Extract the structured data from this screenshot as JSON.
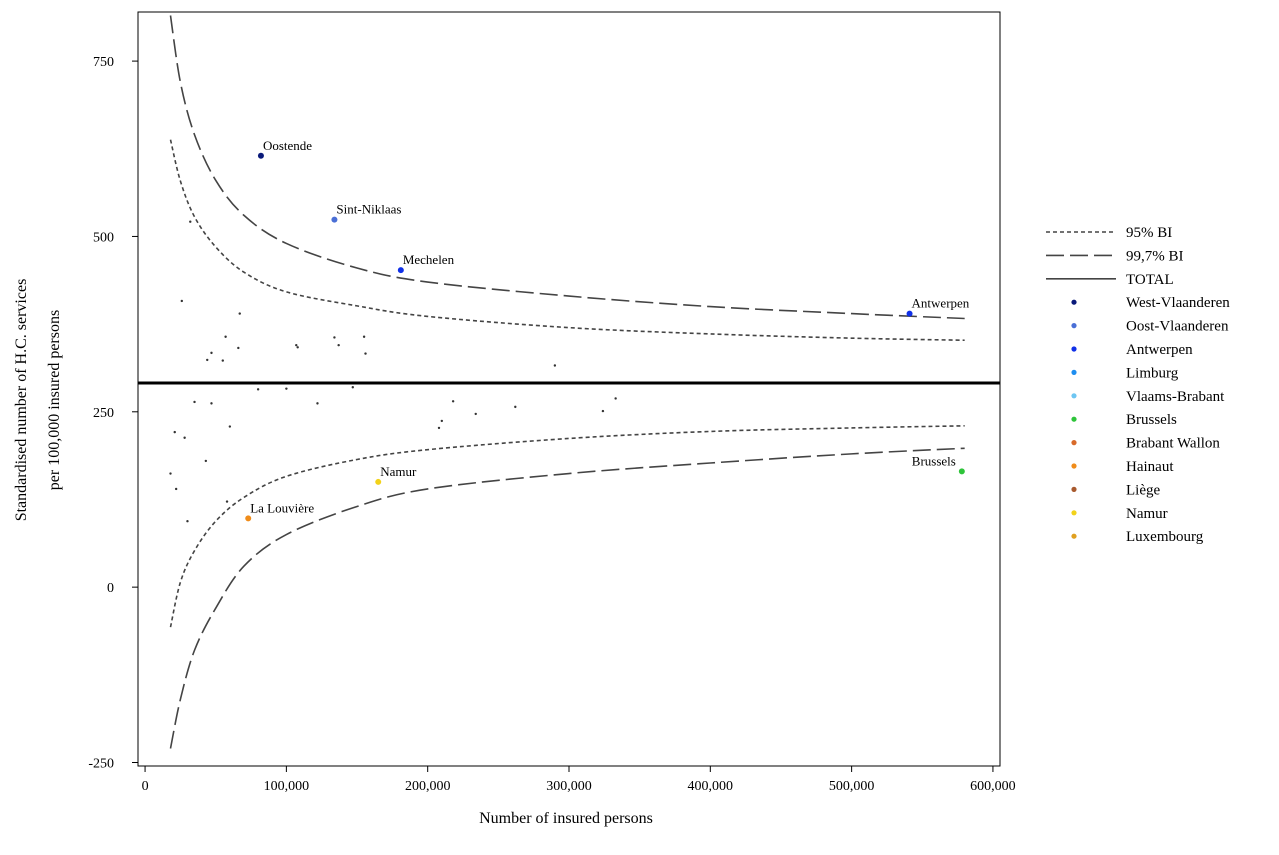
{
  "chart_data": {
    "type": "scatter",
    "title": "",
    "xlabel": "Number of insured persons",
    "ylabel": "Standardised number of H.C. services per 100,000 insured persons",
    "ylabel_lines": [
      "Standardised number of H.C. services",
      "per 100,000 insured persons"
    ],
    "xlim": [
      -5000,
      605000
    ],
    "ylim": [
      -255,
      820
    ],
    "x_ticks": [
      0,
      100000,
      200000,
      300000,
      400000,
      500000,
      600000
    ],
    "x_tick_labels": [
      "0",
      "100,000",
      "200,000",
      "300,000",
      "400,000",
      "500,000",
      "600,000"
    ],
    "y_ticks": [
      -250,
      0,
      250,
      500,
      750
    ],
    "y_tick_labels": [
      "-250",
      "0",
      "250",
      "500",
      "750"
    ],
    "grid": false,
    "legend_position": "right",
    "total": 291,
    "funnel": {
      "bi95": {
        "upper": [
          [
            18000,
            638
          ],
          [
            25000,
            579
          ],
          [
            35000,
            528
          ],
          [
            50000,
            485
          ],
          [
            70000,
            449
          ],
          [
            100000,
            421
          ],
          [
            150000,
            401
          ],
          [
            200000,
            386
          ],
          [
            300000,
            370
          ],
          [
            400000,
            361
          ],
          [
            500000,
            355
          ],
          [
            580000,
            352
          ]
        ],
        "lower": [
          [
            18000,
            -57
          ],
          [
            25000,
            7
          ],
          [
            35000,
            52
          ],
          [
            50000,
            94
          ],
          [
            70000,
            128
          ],
          [
            100000,
            158
          ],
          [
            150000,
            182
          ],
          [
            200000,
            196
          ],
          [
            300000,
            212
          ],
          [
            400000,
            222
          ],
          [
            500000,
            227
          ],
          [
            580000,
            230
          ]
        ]
      },
      "bi997": {
        "upper": [
          [
            18000,
            815
          ],
          [
            25000,
            720
          ],
          [
            35000,
            645
          ],
          [
            50000,
            580
          ],
          [
            70000,
            530
          ],
          [
            100000,
            490
          ],
          [
            150000,
            455
          ],
          [
            200000,
            435
          ],
          [
            300000,
            415
          ],
          [
            400000,
            400
          ],
          [
            500000,
            390
          ],
          [
            580000,
            383
          ]
        ],
        "lower": [
          [
            18000,
            -230
          ],
          [
            25000,
            -160
          ],
          [
            35000,
            -90
          ],
          [
            50000,
            -30
          ],
          [
            70000,
            30
          ],
          [
            100000,
            75
          ],
          [
            150000,
            115
          ],
          [
            200000,
            140
          ],
          [
            300000,
            162
          ],
          [
            400000,
            177
          ],
          [
            500000,
            190
          ],
          [
            580000,
            198
          ]
        ]
      }
    },
    "legend": [
      {
        "label": "95% BI",
        "style": "dotted"
      },
      {
        "label": "99,7% BI",
        "style": "dashed"
      },
      {
        "label": "TOTAL",
        "style": "solid"
      },
      {
        "label": "West-Vlaanderen",
        "color": "#0a1a7a"
      },
      {
        "label": "Oost-Vlaanderen",
        "color": "#4a6fd6"
      },
      {
        "label": "Antwerpen",
        "color": "#1030e8"
      },
      {
        "label": "Limburg",
        "color": "#1e8ef0"
      },
      {
        "label": "Vlaams-Brabant",
        "color": "#6ec6f2"
      },
      {
        "label": "Brussels",
        "color": "#2ec43a"
      },
      {
        "label": "Brabant Wallon",
        "color": "#d86a2a"
      },
      {
        "label": "Hainaut",
        "color": "#f08c1a"
      },
      {
        "label": "Liège",
        "color": "#a85a2e"
      },
      {
        "label": "Namur",
        "color": "#f2d21a"
      },
      {
        "label": "Luxembourg",
        "color": "#e0a020"
      }
    ],
    "highlighted": [
      {
        "label": "Oostende",
        "x": 82000,
        "y": 615,
        "color": "#0a1a7a"
      },
      {
        "label": "Sint-Niklaas",
        "x": 134000,
        "y": 524,
        "color": "#4a6fd6"
      },
      {
        "label": "Mechelen",
        "x": 181000,
        "y": 452,
        "color": "#1030e8"
      },
      {
        "label": "Antwerpen",
        "x": 541000,
        "y": 390,
        "color": "#1030e8"
      },
      {
        "label": "Namur",
        "x": 165000,
        "y": 150,
        "color": "#f2d21a"
      },
      {
        "label": "La Louvière",
        "x": 73000,
        "y": 98,
        "color": "#f08c1a"
      },
      {
        "label": "Brussels",
        "x": 578000,
        "y": 165,
        "color": "#2ec43a"
      }
    ],
    "other_points": [
      [
        32000,
        521
      ],
      [
        26000,
        408
      ],
      [
        67000,
        390
      ],
      [
        57000,
        357
      ],
      [
        47000,
        334
      ],
      [
        44000,
        324
      ],
      [
        55000,
        323
      ],
      [
        66000,
        341
      ],
      [
        107000,
        345
      ],
      [
        108000,
        342
      ],
      [
        134000,
        356
      ],
      [
        137000,
        345
      ],
      [
        155000,
        357
      ],
      [
        156000,
        333
      ],
      [
        290000,
        316
      ],
      [
        35000,
        264
      ],
      [
        47000,
        262
      ],
      [
        80000,
        282
      ],
      [
        100000,
        283
      ],
      [
        122000,
        262
      ],
      [
        147000,
        285
      ],
      [
        208000,
        227
      ],
      [
        210000,
        237
      ],
      [
        218000,
        265
      ],
      [
        234000,
        247
      ],
      [
        262000,
        257
      ],
      [
        324000,
        251
      ],
      [
        333000,
        269
      ],
      [
        21000,
        221
      ],
      [
        28000,
        213
      ],
      [
        60000,
        229
      ],
      [
        43000,
        180
      ],
      [
        18000,
        162
      ],
      [
        22000,
        140
      ],
      [
        58000,
        122
      ],
      [
        30000,
        94
      ]
    ]
  }
}
